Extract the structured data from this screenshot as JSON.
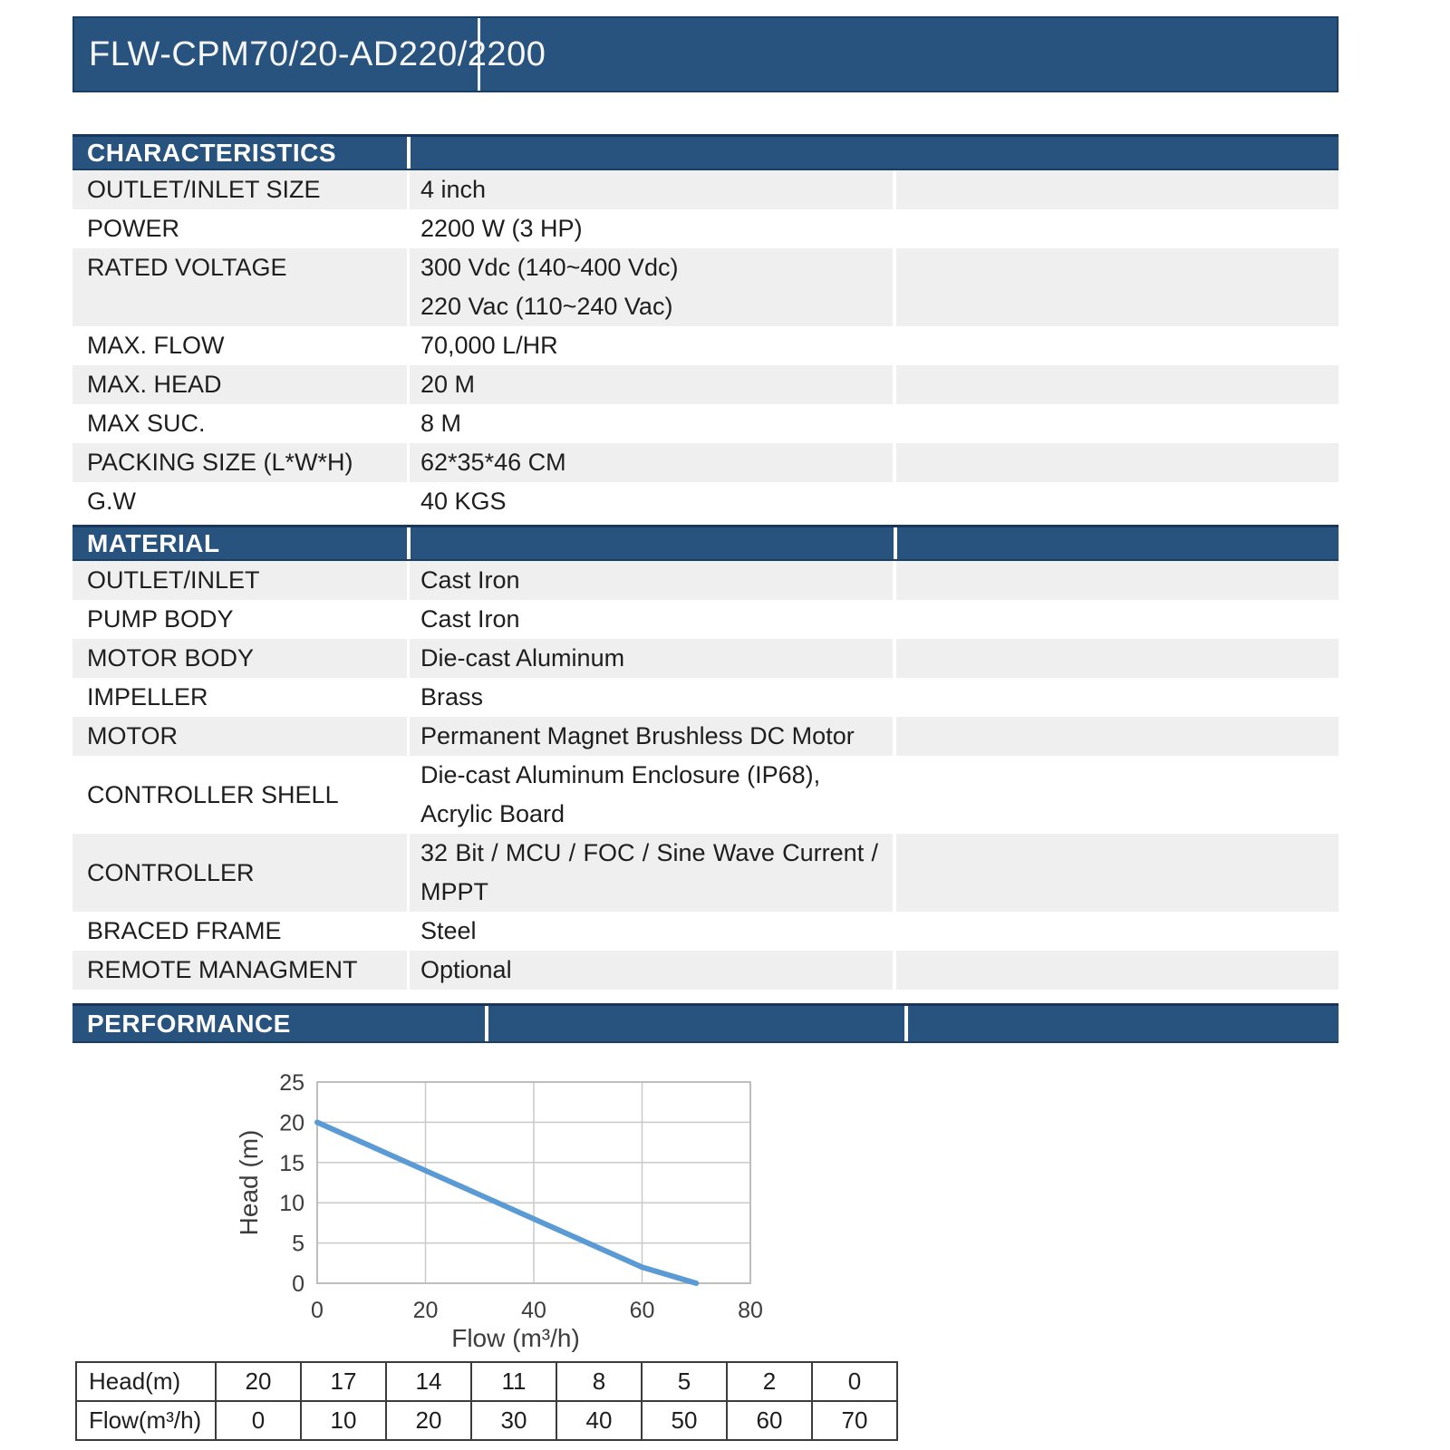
{
  "header": {
    "title": "FLW-CPM70/20-AD220/2200"
  },
  "colors": {
    "header_blue": "#27537e",
    "row_gray": "#efefef",
    "curve_blue": "#5b9bd5"
  },
  "sections": {
    "characteristics": {
      "title": "CHARACTERISTICS",
      "rows": [
        {
          "label": "OUTLET/INLET SIZE",
          "value": "4 inch"
        },
        {
          "label": "POWER",
          "value": "2200 W (3 HP)"
        },
        {
          "label": "RATED VOLTAGE",
          "value": "300 Vdc (140~400 Vdc)",
          "value2": "220 Vac (110~240 Vac)"
        },
        {
          "label": "MAX. FLOW",
          "value": "70,000 L/HR"
        },
        {
          "label": "MAX. HEAD",
          "value": "20 M"
        },
        {
          "label": "MAX SUC.",
          "value": "8 M"
        },
        {
          "label": "PACKING SIZE (L*W*H)",
          "value": "62*35*46 CM"
        },
        {
          "label": "G.W",
          "value": "40 KGS"
        }
      ]
    },
    "material": {
      "title": "MATERIAL",
      "rows": [
        {
          "label": "OUTLET/INLET",
          "value": "Cast Iron"
        },
        {
          "label": "PUMP BODY",
          "value": "Cast Iron"
        },
        {
          "label": "MOTOR BODY",
          "value": "Die-cast Aluminum"
        },
        {
          "label": "IMPELLER",
          "value": "Brass"
        },
        {
          "label": "MOTOR",
          "value": "Permanent Magnet Brushless DC Motor"
        },
        {
          "label": "CONTROLLER SHELL",
          "value": "Die-cast Aluminum Enclosure (IP68),",
          "value2": "Acrylic Board"
        },
        {
          "label": "CONTROLLER",
          "value": "32 Bit / MCU / FOC / Sine Wave Current /",
          "value2": "MPPT"
        },
        {
          "label": "BRACED FRAME",
          "value": "Steel"
        },
        {
          "label": "REMOTE MANAGMENT",
          "value": "Optional"
        }
      ]
    },
    "performance": {
      "title": "PERFORMANCE"
    }
  },
  "chart_data": {
    "type": "line",
    "title": "",
    "xlabel": "Flow (m³/h)",
    "ylabel": "Head (m)",
    "x": [
      0,
      10,
      20,
      30,
      40,
      50,
      60,
      70
    ],
    "y": [
      20,
      17,
      14,
      11,
      8,
      5,
      2,
      0
    ],
    "xlim": [
      0,
      80
    ],
    "ylim": [
      0,
      25
    ],
    "xticks": [
      0,
      20,
      40,
      60,
      80
    ],
    "yticks": [
      0,
      5,
      10,
      15,
      20,
      25
    ],
    "grid": true,
    "legend": false,
    "line_color": "#5b9bd5"
  },
  "perf_table": {
    "head_label": "Head(m)",
    "flow_label": "Flow(m³/h)",
    "head_values": [
      "20",
      "17",
      "14",
      "11",
      "8",
      "5",
      "2",
      "0"
    ],
    "flow_values": [
      "0",
      "10",
      "20",
      "30",
      "40",
      "50",
      "60",
      "70"
    ]
  }
}
